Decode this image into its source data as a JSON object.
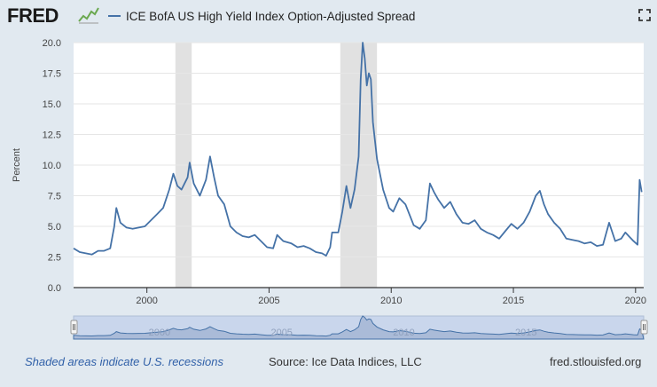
{
  "header": {
    "logo_text": "FRED",
    "legend_label": "ICE BofA US High Yield Index Option-Adjusted Spread",
    "logo_icon": "fred-line-graph-icon",
    "fullscreen_icon": "fullscreen-icon"
  },
  "footer": {
    "recession_note": "Shaded areas indicate U.S. recessions",
    "source": "Source: Ice Data Indices, LLC",
    "link": "fred.stlouisfed.org"
  },
  "colors": {
    "series": "#4572a7",
    "recession": "#e1e1e1",
    "navigator_fill": "#aabbd8",
    "navigator_mask": "#c9d6ec"
  },
  "chart_data": {
    "type": "line",
    "ylabel": "Percent",
    "xlabel": "",
    "ylim": [
      0,
      20
    ],
    "yticks": [
      "0.0",
      "2.5",
      "5.0",
      "7.5",
      "10.0",
      "12.5",
      "15.0",
      "17.5",
      "20.0"
    ],
    "xticks": [
      "2000",
      "2005",
      "2010",
      "2015",
      "2020"
    ],
    "navigator_ticks": [
      "2000",
      "2005",
      "2010",
      "2015"
    ],
    "xlim": [
      "1997-01",
      "2020-05"
    ],
    "grid": true,
    "recessions": [
      [
        "2001-03",
        "2001-11"
      ],
      [
        "2007-12",
        "2009-06"
      ]
    ],
    "series": [
      {
        "x": [
          "1997-01",
          "1997-04",
          "1997-07",
          "1997-10",
          "1998-01",
          "1998-04",
          "1998-07",
          "1998-09",
          "1998-10",
          "1998-12",
          "1999-03",
          "1999-06",
          "1999-09",
          "1999-12",
          "2000-03",
          "2000-06",
          "2000-09",
          "2000-12",
          "2001-02",
          "2001-04",
          "2001-06",
          "2001-09",
          "2001-10",
          "2001-12",
          "2002-03",
          "2002-06",
          "2002-08",
          "2002-10",
          "2002-12",
          "2003-03",
          "2003-06",
          "2003-09",
          "2003-12",
          "2004-03",
          "2004-06",
          "2004-09",
          "2004-12",
          "2005-03",
          "2005-05",
          "2005-08",
          "2005-12",
          "2006-03",
          "2006-06",
          "2006-09",
          "2006-12",
          "2007-03",
          "2007-05",
          "2007-07",
          "2007-08",
          "2007-11",
          "2008-01",
          "2008-03",
          "2008-05",
          "2008-07",
          "2008-09",
          "2008-10",
          "2008-11",
          "2008-12",
          "2009-01",
          "2009-02",
          "2009-03",
          "2009-04",
          "2009-06",
          "2009-09",
          "2009-12",
          "2010-02",
          "2010-05",
          "2010-08",
          "2010-12",
          "2011-03",
          "2011-06",
          "2011-08",
          "2011-10",
          "2011-12",
          "2012-03",
          "2012-06",
          "2012-09",
          "2012-12",
          "2013-03",
          "2013-06",
          "2013-09",
          "2013-12",
          "2014-03",
          "2014-06",
          "2014-09",
          "2014-12",
          "2015-03",
          "2015-06",
          "2015-09",
          "2015-12",
          "2016-02",
          "2016-04",
          "2016-06",
          "2016-09",
          "2016-12",
          "2017-03",
          "2017-06",
          "2017-09",
          "2017-12",
          "2018-03",
          "2018-06",
          "2018-09",
          "2018-12",
          "2019-03",
          "2019-06",
          "2019-08",
          "2019-12",
          "2020-02",
          "2020-03",
          "2020-04"
        ],
        "values": [
          3.2,
          2.9,
          2.8,
          2.7,
          3.0,
          3.0,
          3.2,
          5.0,
          6.5,
          5.3,
          4.9,
          4.8,
          4.9,
          5.0,
          5.5,
          6.0,
          6.5,
          8.0,
          9.3,
          8.3,
          8.0,
          9.0,
          10.2,
          8.5,
          7.5,
          8.8,
          10.7,
          9.0,
          7.5,
          6.8,
          5.0,
          4.5,
          4.2,
          4.1,
          4.3,
          3.8,
          3.3,
          3.2,
          4.3,
          3.8,
          3.6,
          3.3,
          3.4,
          3.2,
          2.9,
          2.8,
          2.6,
          3.3,
          4.5,
          4.5,
          6.2,
          8.3,
          6.5,
          8.0,
          10.7,
          17.0,
          20.0,
          18.7,
          16.5,
          17.5,
          17.0,
          13.5,
          10.5,
          8.0,
          6.5,
          6.2,
          7.3,
          6.8,
          5.1,
          4.8,
          5.5,
          8.5,
          7.8,
          7.2,
          6.5,
          7.0,
          6.0,
          5.3,
          5.2,
          5.5,
          4.8,
          4.5,
          4.3,
          4.0,
          4.6,
          5.2,
          4.8,
          5.3,
          6.2,
          7.5,
          7.9,
          6.8,
          6.0,
          5.3,
          4.8,
          4.0,
          3.9,
          3.8,
          3.6,
          3.7,
          3.4,
          3.5,
          5.3,
          3.8,
          4.0,
          4.5,
          3.8,
          3.5,
          8.8,
          7.8
        ]
      }
    ]
  }
}
